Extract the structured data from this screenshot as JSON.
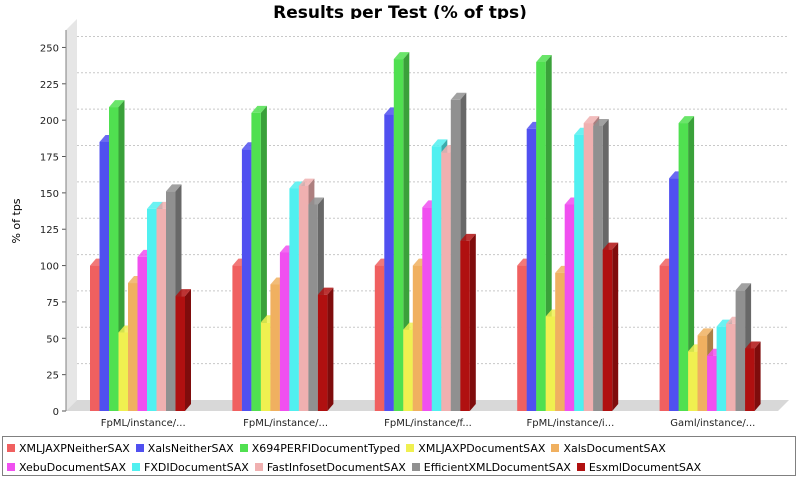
{
  "chart_data": {
    "type": "bar",
    "title": "Results per Test (% of tps)",
    "xlabel": "",
    "ylabel": "% of tps",
    "ylim": [
      0,
      262
    ],
    "yticks": [
      0,
      25,
      50,
      75,
      100,
      125,
      150,
      175,
      200,
      225,
      250
    ],
    "grid": true,
    "legend_position": "bottom",
    "categories": [
      "FpML/instance/...",
      "FpML/instance/...",
      "FpML/instance/f...",
      "FpML/instance/i...",
      "Gaml/instance/..."
    ],
    "series": [
      {
        "name": "XMLJAXPNeitherSAX",
        "color": "#f06060",
        "values": [
          100,
          100,
          100,
          100,
          100
        ]
      },
      {
        "name": "XalsNeitherSAX",
        "color": "#5050f0",
        "values": [
          185,
          180,
          204,
          194,
          160
        ]
      },
      {
        "name": "X694PERFIDocumentTyped",
        "color": "#50e050",
        "values": [
          209,
          205,
          242,
          240,
          198
        ]
      },
      {
        "name": "XMLJAXPDocumentSAX",
        "color": "#f0f050",
        "values": [
          54,
          61,
          56,
          65,
          41
        ]
      },
      {
        "name": "XalsDocumentSAX",
        "color": "#f0b060",
        "values": [
          88,
          87,
          100,
          95,
          52
        ]
      },
      {
        "name": "XebuDocumentSAX",
        "color": "#f050f0",
        "values": [
          106,
          109,
          140,
          142,
          38
        ]
      },
      {
        "name": "FXDIDocumentSAX",
        "color": "#50f0f0",
        "values": [
          139,
          153,
          182,
          190,
          58
        ]
      },
      {
        "name": "FastInfosetDocumentSAX",
        "color": "#f0b0b0",
        "values": [
          139,
          155,
          178,
          198,
          60
        ]
      },
      {
        "name": "EfficientXMLDocumentSAX",
        "color": "#909090",
        "values": [
          151,
          142,
          214,
          196,
          83
        ]
      },
      {
        "name": "EsxmlDocumentSAX",
        "color": "#b01010",
        "values": [
          79,
          80,
          117,
          111,
          43
        ]
      }
    ]
  }
}
